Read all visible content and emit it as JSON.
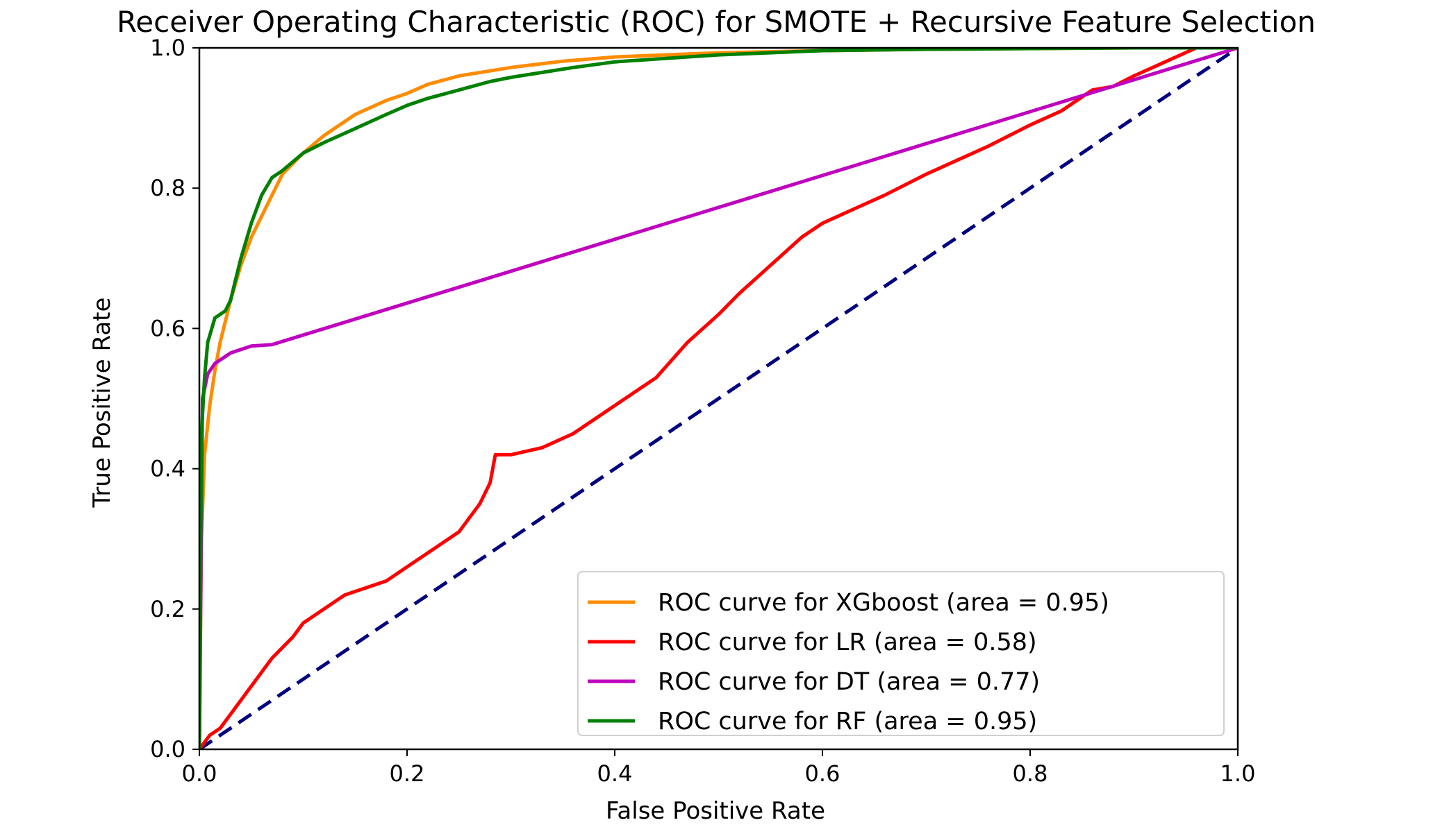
{
  "chart_data": {
    "type": "line",
    "title": "Receiver Operating Characteristic (ROC) for SMOTE + Recursive Feature Selection",
    "xlabel": "False Positive Rate",
    "ylabel": "True Positive Rate",
    "xlim": [
      0.0,
      1.0
    ],
    "ylim": [
      0.0,
      1.0
    ],
    "xticks": [
      "0.0",
      "0.2",
      "0.4",
      "0.6",
      "0.8",
      "1.0"
    ],
    "yticks": [
      "0.0",
      "0.2",
      "0.4",
      "0.6",
      "0.8",
      "1.0"
    ],
    "grid": false,
    "legend_position": "bottom-right",
    "series": [
      {
        "name": "ROC curve for XGboost (area = 0.95)",
        "color": "#ff8c00",
        "x": [
          0.0,
          0.002,
          0.005,
          0.01,
          0.015,
          0.02,
          0.03,
          0.04,
          0.05,
          0.06,
          0.07,
          0.08,
          0.1,
          0.12,
          0.15,
          0.18,
          0.2,
          0.22,
          0.25,
          0.3,
          0.35,
          0.4,
          0.5,
          0.6,
          0.7,
          0.8,
          0.9,
          1.0
        ],
        "y": [
          0.0,
          0.3,
          0.42,
          0.49,
          0.54,
          0.58,
          0.64,
          0.69,
          0.73,
          0.76,
          0.79,
          0.82,
          0.85,
          0.875,
          0.905,
          0.925,
          0.935,
          0.948,
          0.96,
          0.972,
          0.981,
          0.987,
          0.993,
          0.996,
          0.998,
          0.999,
          1.0,
          1.0
        ]
      },
      {
        "name": "ROC curve for LR (area = 0.58)",
        "color": "#ff0000",
        "x": [
          0.0,
          0.01,
          0.02,
          0.03,
          0.05,
          0.07,
          0.09,
          0.1,
          0.12,
          0.14,
          0.16,
          0.18,
          0.2,
          0.22,
          0.25,
          0.27,
          0.28,
          0.285,
          0.3,
          0.33,
          0.36,
          0.4,
          0.44,
          0.47,
          0.5,
          0.52,
          0.55,
          0.58,
          0.6,
          0.63,
          0.66,
          0.7,
          0.73,
          0.76,
          0.8,
          0.83,
          0.86,
          0.88,
          0.9,
          0.93,
          0.96,
          1.0
        ],
        "y": [
          0.0,
          0.02,
          0.03,
          0.05,
          0.09,
          0.13,
          0.16,
          0.18,
          0.2,
          0.22,
          0.23,
          0.24,
          0.26,
          0.28,
          0.31,
          0.35,
          0.38,
          0.42,
          0.42,
          0.43,
          0.45,
          0.49,
          0.53,
          0.58,
          0.62,
          0.65,
          0.69,
          0.73,
          0.75,
          0.77,
          0.79,
          0.82,
          0.84,
          0.86,
          0.89,
          0.91,
          0.94,
          0.945,
          0.96,
          0.98,
          1.0,
          1.0
        ]
      },
      {
        "name": "ROC curve for DT (area = 0.77)",
        "color": "#bf00bf",
        "x": [
          0.0,
          0.003,
          0.008,
          0.015,
          0.03,
          0.05,
          0.07,
          1.0
        ],
        "y": [
          0.0,
          0.5,
          0.535,
          0.55,
          0.565,
          0.575,
          0.577,
          1.0
        ]
      },
      {
        "name": "ROC curve for RF (area = 0.95)",
        "color": "#008000",
        "x": [
          0.0,
          0.002,
          0.005,
          0.008,
          0.012,
          0.015,
          0.02,
          0.025,
          0.03,
          0.035,
          0.04,
          0.05,
          0.06,
          0.07,
          0.08,
          0.1,
          0.12,
          0.15,
          0.18,
          0.2,
          0.22,
          0.25,
          0.28,
          0.3,
          0.33,
          0.36,
          0.4,
          0.5,
          0.6,
          0.7,
          0.8,
          0.9,
          1.0
        ],
        "y": [
          0.0,
          0.45,
          0.53,
          0.58,
          0.6,
          0.615,
          0.62,
          0.625,
          0.64,
          0.67,
          0.7,
          0.75,
          0.79,
          0.815,
          0.825,
          0.85,
          0.865,
          0.885,
          0.905,
          0.918,
          0.928,
          0.94,
          0.952,
          0.958,
          0.965,
          0.972,
          0.98,
          0.99,
          0.996,
          0.998,
          0.999,
          1.0,
          1.0
        ]
      }
    ],
    "reference_line": {
      "name": "chance",
      "color": "#000080",
      "x": [
        0.0,
        1.0
      ],
      "y": [
        0.0,
        1.0
      ],
      "style": "dashed"
    }
  }
}
